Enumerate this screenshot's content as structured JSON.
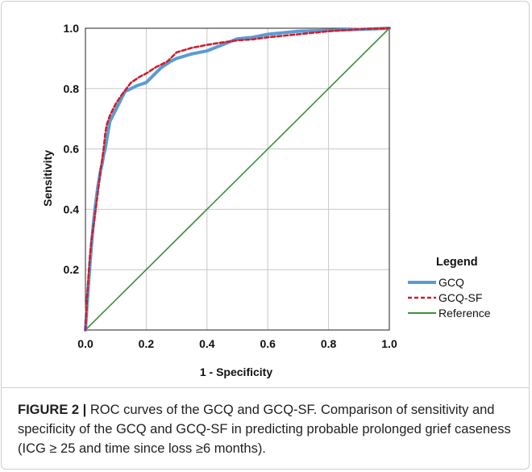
{
  "chart_data": {
    "type": "line",
    "xlabel": "1 - Specificity",
    "ylabel": "Sensitivity",
    "xlim": [
      0,
      1
    ],
    "ylim": [
      0,
      1
    ],
    "x_ticks": [
      "0.0",
      "0.2",
      "0.4",
      "0.6",
      "0.8",
      "1.0"
    ],
    "y_ticks": [
      "0.2",
      "0.4",
      "0.6",
      "0.8",
      "1.0"
    ],
    "grid": true,
    "legend": {
      "title": "Legend",
      "placement": "right"
    },
    "series": [
      {
        "name": "GCQ",
        "color": "#5b9bd5",
        "style": "solid",
        "x": [
          0.0,
          0.005,
          0.01,
          0.015,
          0.02,
          0.025,
          0.03,
          0.035,
          0.04,
          0.045,
          0.05,
          0.055,
          0.06,
          0.065,
          0.07,
          0.075,
          0.08,
          0.09,
          0.1,
          0.11,
          0.12,
          0.13,
          0.15,
          0.17,
          0.2,
          0.22,
          0.25,
          0.28,
          0.3,
          0.35,
          0.4,
          0.45,
          0.5,
          0.55,
          0.6,
          0.65,
          0.7,
          0.8,
          0.9,
          0.95,
          1.0
        ],
        "y": [
          0.0,
          0.08,
          0.15,
          0.22,
          0.28,
          0.34,
          0.39,
          0.43,
          0.47,
          0.5,
          0.53,
          0.55,
          0.58,
          0.6,
          0.63,
          0.66,
          0.69,
          0.71,
          0.73,
          0.75,
          0.77,
          0.79,
          0.8,
          0.81,
          0.82,
          0.84,
          0.87,
          0.89,
          0.9,
          0.915,
          0.925,
          0.945,
          0.965,
          0.97,
          0.98,
          0.985,
          0.99,
          0.993,
          0.996,
          0.998,
          1.0
        ]
      },
      {
        "name": "GCQ-SF",
        "color": "#cc1f2f",
        "style": "dashed",
        "x": [
          0.0,
          0.005,
          0.01,
          0.015,
          0.02,
          0.03,
          0.04,
          0.05,
          0.06,
          0.065,
          0.07,
          0.08,
          0.09,
          0.1,
          0.12,
          0.15,
          0.18,
          0.2,
          0.23,
          0.27,
          0.3,
          0.35,
          0.4,
          0.45,
          0.5,
          0.55,
          0.6,
          0.7,
          0.8,
          0.9,
          1.0
        ],
        "y": [
          0.0,
          0.1,
          0.18,
          0.25,
          0.3,
          0.37,
          0.45,
          0.53,
          0.6,
          0.65,
          0.68,
          0.71,
          0.73,
          0.75,
          0.78,
          0.82,
          0.84,
          0.85,
          0.87,
          0.89,
          0.92,
          0.935,
          0.945,
          0.953,
          0.96,
          0.963,
          0.97,
          0.98,
          0.99,
          0.997,
          1.0
        ]
      },
      {
        "name": "Reference",
        "color": "#3d8f3d",
        "style": "solid",
        "x": [
          0.0,
          1.0
        ],
        "y": [
          0.0,
          1.0
        ]
      }
    ]
  },
  "caption": {
    "figure_label": "FIGURE 2 |",
    "text": " ROC curves of the GCQ and GCQ-SF. Comparison of sensitivity and specificity of the GCQ and GCQ-SF in predicting probable prolonged grief caseness (ICG ≥ 25 and time since loss ≥6 months)."
  }
}
